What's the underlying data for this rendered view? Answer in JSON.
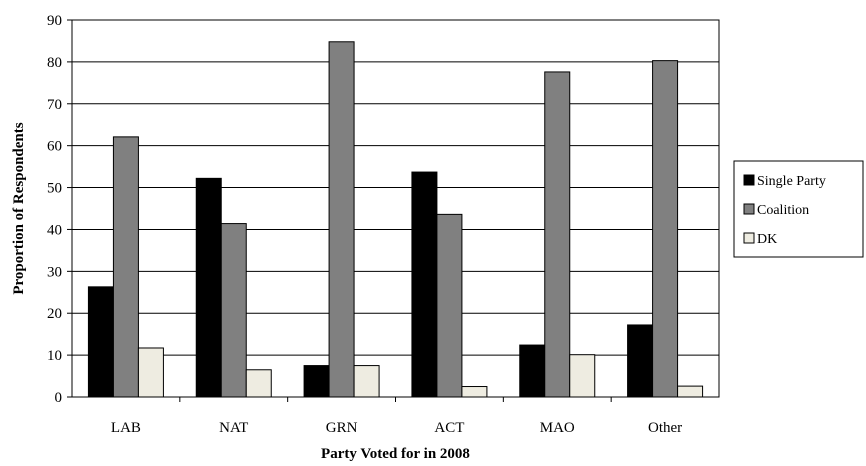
{
  "chart_data": {
    "type": "bar",
    "title": "",
    "xlabel": "Party Voted for in 2008",
    "ylabel": "Proportion of Respondents",
    "ylim": [
      0,
      90
    ],
    "yticks": [
      0,
      10,
      20,
      30,
      40,
      50,
      60,
      70,
      80,
      90
    ],
    "grid": true,
    "legend_position": "right",
    "categories": [
      "LAB",
      "NAT",
      "GRN",
      "ACT",
      "MAO",
      "Other"
    ],
    "series": [
      {
        "name": "Single Party",
        "color": "#000000",
        "values": [
          26.3,
          52.2,
          7.5,
          53.7,
          12.4,
          17.2
        ]
      },
      {
        "name": "Coalition",
        "color": "#808080",
        "values": [
          62.1,
          41.4,
          84.8,
          43.6,
          77.6,
          80.3
        ]
      },
      {
        "name": "DK",
        "color": "#eeece1",
        "values": [
          11.7,
          6.5,
          7.5,
          2.5,
          10.1,
          2.6
        ]
      }
    ]
  }
}
